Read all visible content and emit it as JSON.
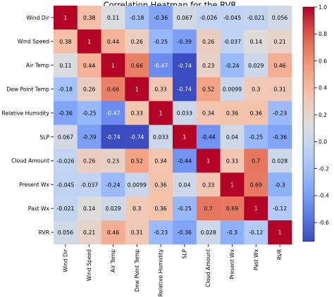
{
  "chart_data": {
    "type": "heatmap",
    "title": "Correlation Heatmap for the RVR",
    "row_labels": [
      "Wind Dir",
      "Wind Speed",
      "Air Temp",
      "Dew Point Temp",
      "Relative Humidity",
      "SLP",
      "Cloud Amount",
      "Present Wx",
      "Past Wx",
      "RVR"
    ],
    "col_labels": [
      "Wind Dir",
      "Wind Speed",
      "Air Temp",
      "Dew Point Temp",
      "Relative Humidity",
      "SLP",
      "Cloud Amount",
      "Present Wx",
      "Past Wx",
      "RVR"
    ],
    "values": [
      [
        1,
        0.38,
        0.11,
        -0.18,
        -0.36,
        0.067,
        -0.026,
        -0.045,
        -0.021,
        0.056
      ],
      [
        0.38,
        1,
        0.44,
        0.26,
        -0.25,
        -0.39,
        0.26,
        -0.037,
        0.14,
        0.21
      ],
      [
        0.11,
        0.44,
        1,
        0.66,
        -0.47,
        -0.74,
        0.23,
        -0.24,
        0.029,
        0.46
      ],
      [
        -0.18,
        0.26,
        0.66,
        1,
        0.33,
        -0.74,
        0.52,
        0.0099,
        0.3,
        0.31
      ],
      [
        -0.36,
        -0.25,
        -0.47,
        0.33,
        1,
        0.033,
        0.34,
        0.36,
        0.36,
        -0.23
      ],
      [
        0.067,
        -0.39,
        -0.74,
        -0.74,
        0.033,
        1,
        -0.44,
        0.04,
        -0.25,
        -0.36
      ],
      [
        -0.026,
        0.26,
        0.23,
        0.52,
        0.34,
        -0.44,
        1,
        0.33,
        0.7,
        0.028
      ],
      [
        -0.045,
        -0.037,
        -0.24,
        0.0099,
        0.36,
        0.04,
        0.33,
        1,
        0.69,
        -0.3
      ],
      [
        -0.021,
        0.14,
        0.029,
        0.3,
        0.36,
        -0.25,
        0.7,
        0.69,
        1,
        -0.12
      ],
      [
        0.056,
        0.21,
        0.46,
        0.31,
        -0.23,
        -0.36,
        0.028,
        -0.3,
        -0.12,
        1
      ]
    ],
    "cell_labels": [
      [
        "1",
        "0.38",
        "0.11",
        "-0.18",
        "-0.36",
        "0.067",
        "-0.026",
        "-0.045",
        "-0.021",
        "0.056"
      ],
      [
        "0.38",
        "1",
        "0.44",
        "0.26",
        "-0.25",
        "-0.39",
        "0.26",
        "-0.037",
        "0.14",
        "0.21"
      ],
      [
        "0.11",
        "0.44",
        "1",
        "0.66",
        "-0.47",
        "-0.74",
        "0.23",
        "-0.24",
        "0.029",
        "0.46"
      ],
      [
        "-0.18",
        "0.26",
        "0.66",
        "1",
        "0.33",
        "-0.74",
        "0.52",
        "0.0099",
        "0.3",
        "0.31"
      ],
      [
        "-0.36",
        "-0.25",
        "-0.47",
        "0.33",
        "1",
        "0.033",
        "0.34",
        "0.36",
        "0.36",
        "-0.23"
      ],
      [
        "0.067",
        "-0.39",
        "-0.74",
        "-0.74",
        "0.033",
        "1",
        "-0.44",
        "0.04",
        "-0.25",
        "-0.36"
      ],
      [
        "-0.026",
        "0.26",
        "0.23",
        "0.52",
        "0.34",
        "-0.44",
        "1",
        "0.33",
        "0.7",
        "0.028"
      ],
      [
        "-0.045",
        "-0.037",
        "-0.24",
        "0.0099",
        "0.36",
        "0.04",
        "0.33",
        "1",
        "0.69",
        "-0.3"
      ],
      [
        "-0.021",
        "0.14",
        "0.029",
        "0.3",
        "0.36",
        "-0.25",
        "0.7",
        "0.69",
        "1",
        "-0.12"
      ],
      [
        "0.056",
        "0.21",
        "0.46",
        "0.31",
        "-0.23",
        "-0.36",
        "0.028",
        "-0.3",
        "-0.12",
        "1"
      ]
    ],
    "colormap": "coolwarm",
    "vmin": -0.74,
    "vmax": 1.0,
    "colorbar_ticks": [
      1.0,
      0.8,
      0.6,
      0.4,
      0.2,
      0.0,
      -0.2,
      -0.4,
      -0.6
    ],
    "colorbar_tick_labels": [
      "1.0",
      "0.8",
      "0.6",
      "0.4",
      "0.2",
      "0.0",
      "-0.2",
      "-0.4",
      "-0.6"
    ]
  }
}
